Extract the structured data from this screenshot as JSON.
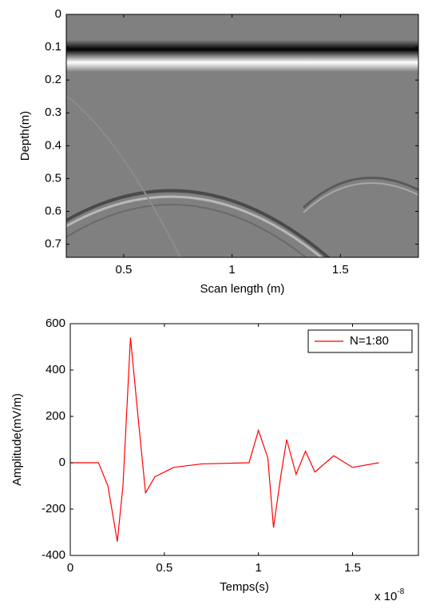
{
  "chart_data": [
    {
      "type": "image",
      "xlabel": "Scan length (m)",
      "ylabel": "Depth(m)",
      "xlim": [
        0.235,
        1.86
      ],
      "xticks": [
        0.5,
        1,
        1.5
      ],
      "ylim": [
        0,
        0.74
      ],
      "y_reversed": true,
      "yticks": [
        0,
        0.1,
        0.2,
        0.3,
        0.4,
        0.5,
        0.6,
        0.7
      ]
    },
    {
      "type": "line",
      "xlabel": "Temps(s)",
      "ylabel": "Amplitude(mV/m)",
      "x_offset": {
        "base": "x 10",
        "exponent": "-8"
      },
      "xlim": [
        0,
        1.85
      ],
      "xticks": [
        0,
        0.5,
        1,
        1.5
      ],
      "ylim": [
        -400,
        600
      ],
      "yticks": [
        -400,
        -200,
        0,
        200,
        400,
        600
      ],
      "legend": "upper right",
      "x": [
        0,
        0.15,
        0.2,
        0.25,
        0.28,
        0.32,
        0.36,
        0.4,
        0.45,
        0.55,
        0.7,
        0.95,
        1.0,
        1.05,
        1.08,
        1.12,
        1.15,
        1.2,
        1.25,
        1.3,
        1.4,
        1.5,
        1.64
      ],
      "series": [
        {
          "name": "N=1:80",
          "color": "#ff0000",
          "values": [
            0,
            0,
            -100,
            -340,
            -100,
            540,
            200,
            -130,
            -60,
            -20,
            -5,
            0,
            140,
            20,
            -280,
            -50,
            100,
            -50,
            50,
            -40,
            30,
            -20,
            0
          ]
        }
      ]
    }
  ]
}
